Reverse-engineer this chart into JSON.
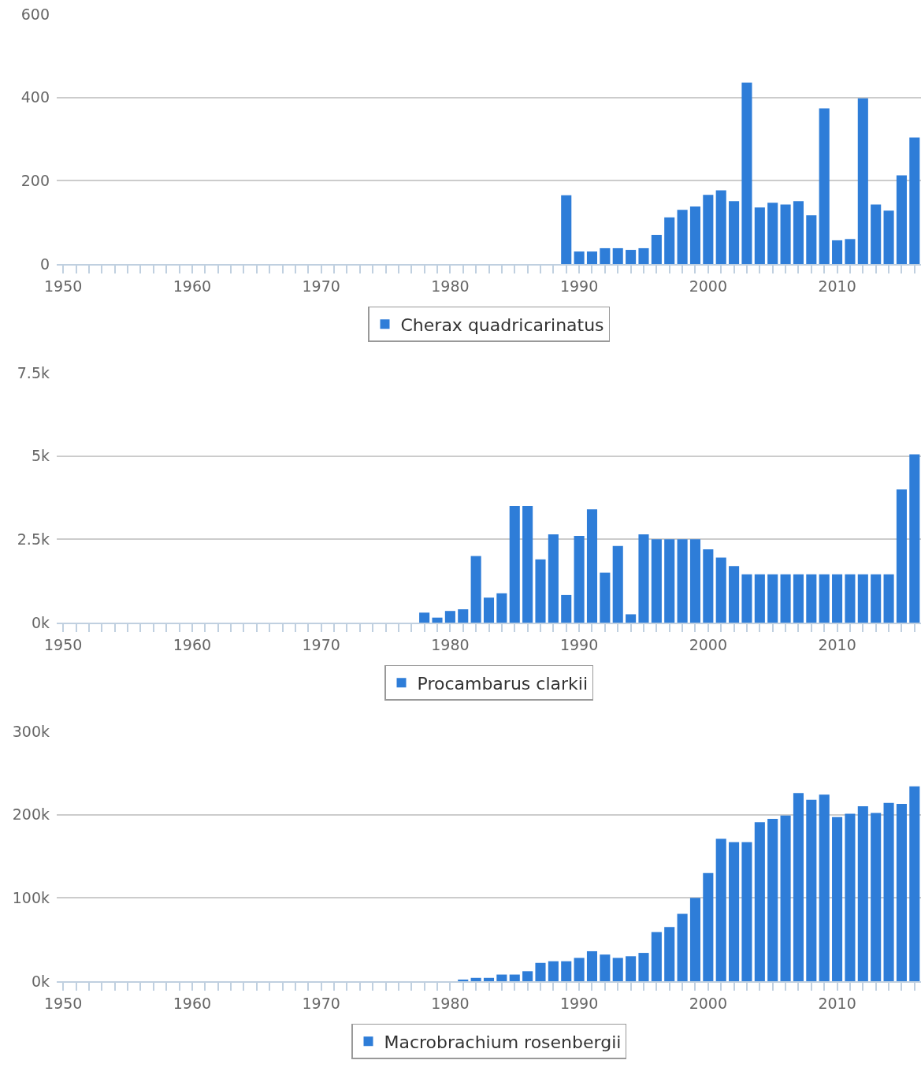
{
  "chart_data": [
    {
      "type": "bar",
      "x": [
        1989,
        1990,
        1991,
        1992,
        1993,
        1994,
        1995,
        1996,
        1997,
        1998,
        1999,
        2000,
        2001,
        2002,
        2003,
        2004,
        2005,
        2006,
        2007,
        2008,
        2009,
        2010,
        2011,
        2012,
        2013,
        2014,
        2015,
        2016
      ],
      "series": [
        {
          "name": "Cherax quadricarinatus",
          "color": "#2e7dd8",
          "values": [
            165,
            30,
            30,
            38,
            38,
            34,
            38,
            70,
            112,
            130,
            138,
            166,
            177,
            151,
            436,
            136,
            147,
            143,
            151,
            117,
            374,
            57,
            60,
            398,
            143,
            128,
            213,
            304
          ]
        }
      ],
      "xlim": [
        1949.5,
        2016.5
      ],
      "xticks": [
        1950,
        1960,
        1970,
        1980,
        1990,
        2000,
        2010
      ],
      "ylim": [
        0,
        600
      ],
      "yticks": [
        0,
        200,
        400,
        600
      ],
      "grid": "y",
      "legend": "bottom"
    },
    {
      "type": "bar",
      "x": [
        1978,
        1979,
        1980,
        1981,
        1982,
        1983,
        1984,
        1985,
        1986,
        1987,
        1988,
        1989,
        1990,
        1991,
        1992,
        1993,
        1994,
        1995,
        1996,
        1997,
        1998,
        1999,
        2000,
        2001,
        2002,
        2003,
        2004,
        2005,
        2006,
        2007,
        2008,
        2009,
        2010,
        2011,
        2012,
        2013,
        2014,
        2015,
        2016
      ],
      "series": [
        {
          "name": "Procambarus clarkii",
          "color": "#2e7dd8",
          "values": [
            300,
            150,
            350,
            400,
            2000,
            750,
            880,
            3500,
            3500,
            1900,
            2650,
            830,
            2600,
            3400,
            1500,
            2300,
            250,
            2650,
            2500,
            2500,
            2500,
            2500,
            2200,
            1950,
            1700,
            1450,
            1450,
            1450,
            1450,
            1450,
            1450,
            1450,
            1450,
            1450,
            1450,
            1450,
            1450,
            4000,
            5050
          ]
        }
      ],
      "xlim": [
        1949.5,
        2016.5
      ],
      "xticks": [
        1950,
        1960,
        1970,
        1980,
        1990,
        2000,
        2010
      ],
      "ylim": [
        0,
        7500
      ],
      "yticks": [
        {
          "value": 0,
          "label": "0k"
        },
        {
          "value": 2500,
          "label": "2.5k"
        },
        {
          "value": 5000,
          "label": "5k"
        },
        {
          "value": 7500,
          "label": "7.5k"
        }
      ],
      "grid": "y",
      "legend": "bottom"
    },
    {
      "type": "bar",
      "x": [
        1981,
        1982,
        1983,
        1984,
        1985,
        1986,
        1987,
        1988,
        1989,
        1990,
        1991,
        1992,
        1993,
        1994,
        1995,
        1996,
        1997,
        1998,
        1999,
        2000,
        2001,
        2002,
        2003,
        2004,
        2005,
        2006,
        2007,
        2008,
        2009,
        2010,
        2011,
        2012,
        2013,
        2014,
        2015,
        2016
      ],
      "series": [
        {
          "name": "Macrobrachium rosenbergii",
          "color": "#2e7dd8",
          "values": [
            2000,
            4000,
            4000,
            8000,
            8000,
            12000,
            22000,
            24000,
            24000,
            28000,
            36000,
            32000,
            28000,
            30000,
            34000,
            59000,
            65000,
            81000,
            100000,
            130000,
            171000,
            167000,
            167000,
            191000,
            195000,
            199000,
            226000,
            218000,
            224000,
            197000,
            201000,
            210000,
            202000,
            214000,
            213000,
            234000
          ]
        }
      ],
      "xlim": [
        1949.5,
        2016.5
      ],
      "xticks": [
        1950,
        1960,
        1970,
        1980,
        1990,
        2000,
        2010
      ],
      "ylim": [
        0,
        300000
      ],
      "yticks": [
        {
          "value": 0,
          "label": "0k"
        },
        {
          "value": 100000,
          "label": "100k"
        },
        {
          "value": 200000,
          "label": "200k"
        },
        {
          "value": 300000,
          "label": "300k"
        }
      ],
      "grid": "y",
      "legend": "bottom"
    }
  ]
}
